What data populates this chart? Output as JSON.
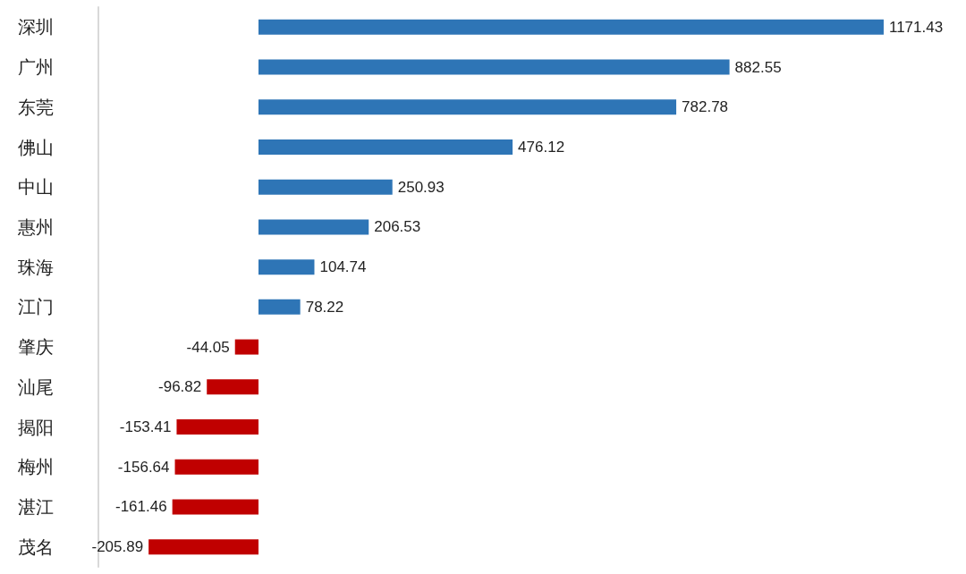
{
  "chart_data": {
    "type": "bar",
    "orientation": "horizontal",
    "data_labels": true,
    "categories": [
      "深圳",
      "广州",
      "东莞",
      "佛山",
      "中山",
      "惠州",
      "珠海",
      "江门",
      "肇庆",
      "汕尾",
      "揭阳",
      "梅州",
      "湛江",
      "茂名"
    ],
    "values": [
      1171.43,
      882.55,
      782.78,
      476.12,
      250.93,
      206.53,
      104.74,
      78.22,
      -44.05,
      -96.82,
      -153.41,
      -156.64,
      -161.46,
      -205.89
    ],
    "colors": [
      "#2e75b6",
      "#2e75b6",
      "#2e75b6",
      "#2e75b6",
      "#2e75b6",
      "#2e75b6",
      "#2e75b6",
      "#2e75b6",
      "#c00000",
      "#c00000",
      "#c00000",
      "#c00000",
      "#c00000",
      "#c00000"
    ]
  }
}
